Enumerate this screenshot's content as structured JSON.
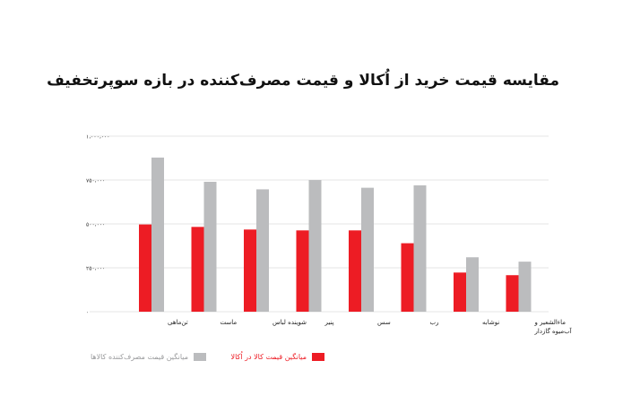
{
  "chart_data": {
    "type": "bar",
    "title": "مقایسه قیمت خرید از اُکالا و قیمت مصرف‌کننده در بازه سوپرتخفیف",
    "categories": [
      "تن‌ماهی",
      "ماست",
      "شوینده لباس",
      "پنیر",
      "سس",
      "رب",
      "نوشابه",
      "ماءالشعیر و آب‌میوه گازدار"
    ],
    "series": [
      {
        "name": "میانگین قیمت کالا در اُکالا",
        "color": "#ed1c24",
        "values": [
          497000,
          483000,
          468000,
          463000,
          463000,
          390000,
          223000,
          208000
        ]
      },
      {
        "name": "میانگین قیمت مصرف‌کننده کالاها",
        "color": "#bbbcbe",
        "values": [
          878000,
          740000,
          697000,
          750000,
          706000,
          720000,
          310000,
          285000
        ]
      }
    ],
    "yticks": [
      "۰",
      "۲۵۰،۰۰۰",
      "۵۰۰،۰۰۰",
      "۷۵۰،۰۰۰",
      "۱،۰۰۰،۰۰۰"
    ],
    "ytick_values": [
      0,
      250000,
      500000,
      750000,
      1000000
    ],
    "ylim": [
      0,
      1000000
    ],
    "grid": true,
    "legend_position": "bottom-left"
  }
}
